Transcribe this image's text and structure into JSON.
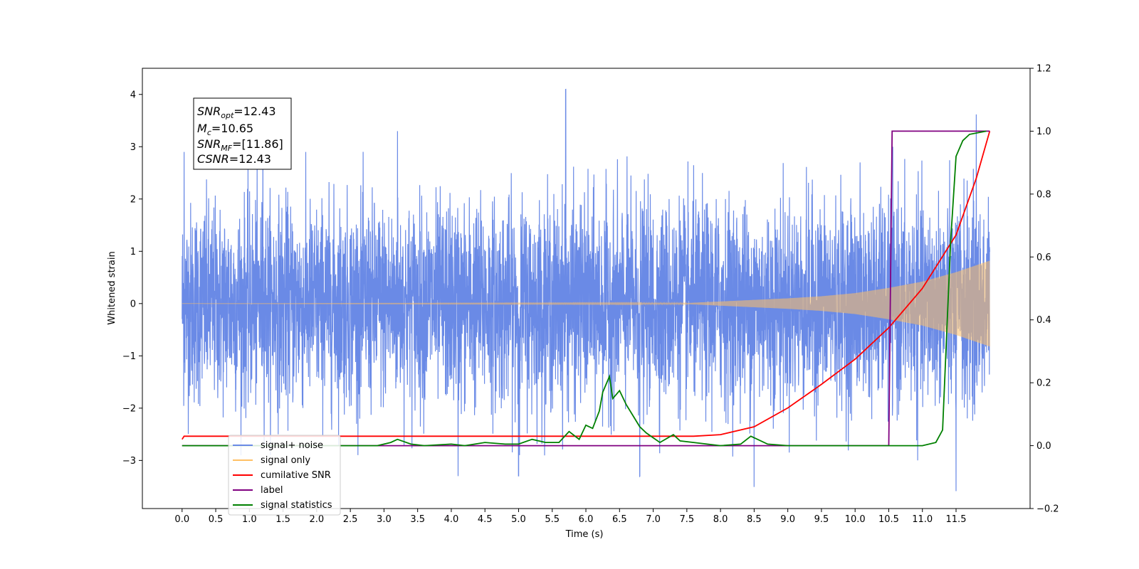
{
  "chart_data": {
    "type": "line",
    "xlabel": "Time (s)",
    "ylabel_left": "Whitened strain",
    "ylabel_right": "",
    "x_ticks": [
      "0.0",
      "0.5",
      "1.0",
      "1.5",
      "2.0",
      "2.5",
      "3.0",
      "3.5",
      "4.0",
      "4.5",
      "5.0",
      "5.5",
      "6.0",
      "6.5",
      "7.0",
      "7.5",
      "8.0",
      "8.5",
      "9.0",
      "9.5",
      "10.0",
      "10.5",
      "11.0",
      "11.5"
    ],
    "x_tick_values": [
      0,
      0.5,
      1,
      1.5,
      2,
      2.5,
      3,
      3.5,
      4,
      4.5,
      5,
      5.5,
      6,
      6.5,
      7,
      7.5,
      8,
      8.5,
      9,
      9.5,
      10,
      10.5,
      11,
      11.5
    ],
    "xlim": [
      -0.59,
      12.6
    ],
    "ylim_left": [
      -3.92,
      4.5
    ],
    "ylim_right": [
      -0.2,
      1.2
    ],
    "y_left_ticks": [
      "−3",
      "−2",
      "−1",
      "0",
      "1",
      "2",
      "3",
      "4"
    ],
    "y_left_tick_values": [
      -3,
      -2,
      -1,
      0,
      1,
      2,
      3,
      4
    ],
    "y_right_ticks": [
      "−0.2",
      "0.0",
      "0.2",
      "0.4",
      "0.6",
      "0.8",
      "1.0",
      "1.2"
    ],
    "y_right_tick_values": [
      -0.2,
      0,
      0.2,
      0.4,
      0.6,
      0.8,
      1.0,
      1.2
    ],
    "grid": false,
    "legend_placement": "lower-left",
    "annotation": {
      "snr_opt": {
        "sym": "SNR",
        "sub": "opt",
        "val": "=12.43"
      },
      "mc": {
        "sym": "M",
        "sub": "c",
        "val": "=10.65"
      },
      "snr_mf": {
        "sym": "SNR",
        "sub": "MF",
        "val": "=[11.86]"
      },
      "csnr": {
        "sym": "CSNR",
        "sub": "",
        "val": "=12.43"
      }
    },
    "series": [
      {
        "name": "signal+ noise",
        "axis": "left",
        "color": "#6a8ae6",
        "kind": "noise",
        "x_range": [
          0,
          12.0
        ],
        "typical_amplitude_range": [
          -2.5,
          2.3
        ],
        "peak_values": [
          {
            "x": 0.03,
            "y": 2.9
          },
          {
            "x": 1.2,
            "y": 3.5
          },
          {
            "x": 3.2,
            "y": 3.3
          },
          {
            "x": 5.7,
            "y": 4.1
          },
          {
            "x": 4.1,
            "y": -3.3
          },
          {
            "x": 5.0,
            "y": -3.3
          },
          {
            "x": 6.8,
            "y": -3.3
          },
          {
            "x": 8.5,
            "y": -3.5
          },
          {
            "x": 11.5,
            "y": -3.5
          },
          {
            "x": 11.8,
            "y": 3.5
          }
        ]
      },
      {
        "name": "signal only",
        "axis": "left",
        "color": "#ffc064",
        "kind": "chirp",
        "x_range": [
          0,
          12.0
        ],
        "envelope": [
          [
            0,
            0
          ],
          [
            7.5,
            0.01
          ],
          [
            8.0,
            0.04
          ],
          [
            8.5,
            0.07
          ],
          [
            9.0,
            0.1
          ],
          [
            9.5,
            0.14
          ],
          [
            10.0,
            0.2
          ],
          [
            10.5,
            0.3
          ],
          [
            11.0,
            0.42
          ],
          [
            11.5,
            0.6
          ],
          [
            12.0,
            0.82
          ]
        ]
      },
      {
        "name": "cumilative SNR",
        "axis": "right",
        "color": "#ff0000",
        "points": [
          [
            0,
            0.02
          ],
          [
            0.03,
            0.03
          ],
          [
            7.6,
            0.03
          ],
          [
            8.0,
            0.035
          ],
          [
            8.5,
            0.06
          ],
          [
            9.0,
            0.12
          ],
          [
            9.5,
            0.195
          ],
          [
            10.0,
            0.275
          ],
          [
            10.5,
            0.375
          ],
          [
            11.0,
            0.5
          ],
          [
            11.5,
            0.67
          ],
          [
            11.8,
            0.85
          ],
          [
            12.0,
            1.0
          ]
        ]
      },
      {
        "name": "label",
        "axis": "right",
        "color": "#800080",
        "points": [
          [
            0,
            0
          ],
          [
            10.5,
            0
          ],
          [
            10.55,
            1.0
          ],
          [
            12.0,
            1.0
          ]
        ]
      },
      {
        "name": "signal statistics",
        "axis": "right",
        "color": "#008000",
        "points": [
          [
            0,
            0
          ],
          [
            2.9,
            0
          ],
          [
            3.1,
            0.01
          ],
          [
            3.2,
            0.02
          ],
          [
            3.4,
            0.005
          ],
          [
            3.6,
            0
          ],
          [
            4.0,
            0.005
          ],
          [
            4.2,
            0
          ],
          [
            4.5,
            0.01
          ],
          [
            4.8,
            0.005
          ],
          [
            5.0,
            0.005
          ],
          [
            5.2,
            0.02
          ],
          [
            5.4,
            0.01
          ],
          [
            5.6,
            0.01
          ],
          [
            5.75,
            0.045
          ],
          [
            5.9,
            0.02
          ],
          [
            6.0,
            0.065
          ],
          [
            6.1,
            0.055
          ],
          [
            6.2,
            0.11
          ],
          [
            6.25,
            0.17
          ],
          [
            6.35,
            0.22
          ],
          [
            6.4,
            0.15
          ],
          [
            6.5,
            0.175
          ],
          [
            6.6,
            0.13
          ],
          [
            6.8,
            0.06
          ],
          [
            6.9,
            0.04
          ],
          [
            7.1,
            0.01
          ],
          [
            7.3,
            0.035
          ],
          [
            7.4,
            0.015
          ],
          [
            7.6,
            0.01
          ],
          [
            7.8,
            0.005
          ],
          [
            8.0,
            0
          ],
          [
            8.3,
            0.005
          ],
          [
            8.45,
            0.03
          ],
          [
            8.55,
            0.02
          ],
          [
            8.7,
            0.005
          ],
          [
            9.0,
            0
          ],
          [
            11.0,
            0
          ],
          [
            11.2,
            0.01
          ],
          [
            11.3,
            0.05
          ],
          [
            11.35,
            0.3
          ],
          [
            11.42,
            0.65
          ],
          [
            11.5,
            0.92
          ],
          [
            11.6,
            0.97
          ],
          [
            11.7,
            0.99
          ],
          [
            11.95,
            1.0
          ]
        ]
      }
    ]
  }
}
